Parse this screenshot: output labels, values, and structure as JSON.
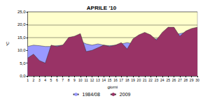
{
  "chart_data": {
    "type": "area",
    "title": "APRILE '10",
    "x_label": "giorni",
    "y_label": "°C",
    "categories": [
      "1",
      "2",
      "3",
      "4",
      "5",
      "6",
      "7",
      "8",
      "9",
      "10",
      "11",
      "12",
      "13",
      "14",
      "15",
      "16",
      "17",
      "18",
      "19",
      "20",
      "21",
      "22",
      "23",
      "24",
      "25",
      "26",
      "27",
      "28",
      "29",
      "30"
    ],
    "series": [
      {
        "name": "1984/08",
        "color": "#9999ff",
        "values": [
          11.5,
          12,
          11.8,
          11.5,
          11.5,
          11.8,
          12,
          12.5,
          13,
          13.5,
          12.5,
          12,
          12.5,
          12,
          11.8,
          12,
          12.5,
          13,
          12.5,
          13,
          13.5,
          14,
          14.5,
          15,
          15.5,
          16,
          16.5,
          17,
          17.5,
          18
        ]
      },
      {
        "name": "2009",
        "color": "#993366",
        "values": [
          7,
          8.5,
          6,
          5,
          12,
          11.5,
          12,
          15,
          15.5,
          16.5,
          9.5,
          10,
          11,
          12,
          11.5,
          12,
          13,
          10.5,
          14.5,
          16,
          17,
          16,
          14,
          17,
          19,
          19,
          15.5,
          17.5,
          18.5,
          19
        ]
      }
    ],
    "ylim": [
      0,
      25
    ],
    "yticks": [
      {
        "value": 0,
        "label": "0,0"
      },
      {
        "value": 5,
        "label": "5,0"
      },
      {
        "value": 10,
        "label": "10,0"
      },
      {
        "value": 15,
        "label": "15,0"
      },
      {
        "value": 20,
        "label": "20,0"
      },
      {
        "value": 25,
        "label": "25,0"
      }
    ],
    "grid": true,
    "legend": "bottom"
  }
}
